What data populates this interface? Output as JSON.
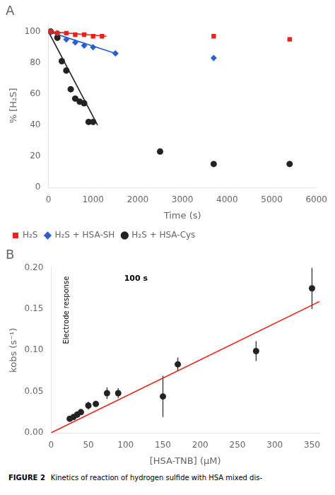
{
  "chart_data": [
    {
      "type": "scatter",
      "title": "A",
      "x_label": "Time (s)",
      "y_label": "% [H₂S]",
      "series": [
        {
          "type": "line",
          "color": "#e8231a",
          "x": [
            0,
            1300
          ],
          "values": [
            100,
            97
          ]
        },
        {
          "type": "line",
          "color": "#2a5fcc",
          "x": [
            0,
            1500
          ],
          "values": [
            100,
            86
          ]
        },
        {
          "type": "line",
          "color": "#222222",
          "x": [
            0,
            1100
          ],
          "values": [
            100,
            40
          ]
        },
        {
          "type": "scatter",
          "name": "H₂S",
          "color": "#e8231a",
          "marker": "square",
          "x": [
            50,
            200,
            400,
            600,
            800,
            1000,
            1200,
            3700,
            5400
          ],
          "values": [
            100,
            99,
            99,
            98,
            98,
            97,
            97,
            97,
            95
          ]
        },
        {
          "type": "scatter",
          "name": "H₂S + HSA-SH",
          "color": "#2a5fcc",
          "marker": "diamond",
          "x": [
            50,
            200,
            400,
            600,
            800,
            1000,
            1500,
            3700
          ],
          "values": [
            100,
            99,
            95,
            93,
            91,
            90,
            86,
            83
          ]
        },
        {
          "type": "scatter",
          "name": "H₂S + HSA-Cys",
          "color": "#222222",
          "marker": "circle",
          "x": [
            50,
            200,
            300,
            400,
            500,
            600,
            700,
            800,
            900,
            1000,
            2500,
            3700,
            5400
          ],
          "values": [
            100,
            96,
            81,
            75,
            63,
            57,
            55,
            54,
            42,
            42,
            23,
            15,
            15
          ]
        }
      ],
      "xlim": [
        0,
        6000
      ],
      "xticks": [
        0,
        1000,
        2000,
        3000,
        4000,
        5000,
        6000
      ],
      "ylim": [
        0,
        105
      ],
      "yticks": [
        0,
        20,
        40,
        60,
        80,
        100
      ],
      "grid": false,
      "legend": "lower left"
    },
    {
      "type": "scatter",
      "title": "B",
      "x_label": "[HSA-TNB] (μM)",
      "y_label": "kobs (s⁻¹)",
      "series": [
        {
          "type": "line",
          "color": "#e8231a",
          "x": [
            0,
            360
          ],
          "values": [
            0.0,
            0.159
          ]
        },
        {
          "type": "scatter",
          "color": "#222222",
          "marker": "circle",
          "x": [
            25,
            30,
            35,
            40,
            50,
            60,
            75,
            90,
            150,
            170,
            275,
            350
          ],
          "values": [
            0.017,
            0.019,
            0.022,
            0.025,
            0.033,
            0.035,
            0.048,
            0.048,
            0.044,
            0.083,
            0.099,
            0.175
          ],
          "yerr": [
            0.002,
            0.002,
            0.004,
            0.003,
            0.005,
            0.003,
            0.007,
            0.006,
            0.025,
            0.008,
            0.012,
            0.025
          ]
        }
      ],
      "xlim": [
        0,
        360
      ],
      "xticks": [
        0,
        50,
        100,
        150,
        200,
        250,
        300,
        350
      ],
      "ylim": [
        0.0,
        0.2
      ],
      "yticks": [
        {
          "value": 0.0,
          "label": "0.00"
        },
        0.05,
        {
          "value": 0.1,
          "label": "0.10"
        },
        0.15,
        {
          "value": 0.2,
          "label": "0.20"
        }
      ],
      "grid": false,
      "annotations": [
        "Electrode response",
        "100 s"
      ],
      "caption": [
        "FIGURE 2",
        "Kinetics of reaction of hydrogen sulfide with HSA mixed dis-"
      ]
    }
  ]
}
